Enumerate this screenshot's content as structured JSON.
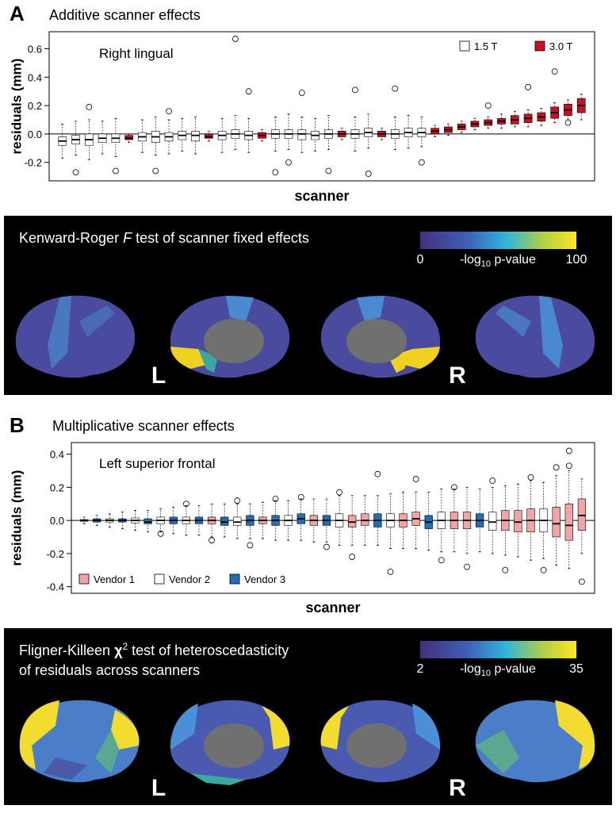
{
  "chart_data": [
    {
      "type": "box",
      "panel": "A",
      "title": "Additive scanner effects",
      "annotation": "Right lingual",
      "ylabel": "residuals (mm)",
      "xlabel": "scanner",
      "xlim": [
        0,
        41
      ],
      "ylim": [
        -0.33,
        0.72
      ],
      "yticks": [
        -0.2,
        {
          "value": 0,
          "label": "0.0"
        },
        0.2,
        0.4,
        0.6
      ],
      "legend": "upper right",
      "series": [
        {
          "name": "1.5 T",
          "color": "#ffffff",
          "x": [
            1,
            2,
            3,
            4,
            5,
            7,
            8,
            9,
            10,
            11,
            13,
            14,
            15,
            17,
            18,
            19,
            20,
            21,
            23,
            24,
            26,
            27,
            28
          ],
          "low": [
            -0.17,
            -0.15,
            -0.18,
            -0.14,
            -0.16,
            -0.13,
            -0.15,
            -0.14,
            -0.12,
            -0.14,
            -0.13,
            -0.11,
            -0.13,
            -0.12,
            -0.11,
            -0.13,
            -0.12,
            -0.11,
            -0.12,
            -0.1,
            -0.11,
            -0.1,
            -0.09
          ],
          "q1": [
            -0.08,
            -0.07,
            -0.08,
            -0.06,
            -0.06,
            -0.05,
            -0.06,
            -0.05,
            -0.04,
            -0.05,
            -0.04,
            -0.03,
            -0.04,
            -0.03,
            -0.03,
            -0.04,
            -0.04,
            -0.03,
            -0.03,
            -0.02,
            -0.03,
            -0.02,
            -0.02
          ],
          "median": [
            -0.05,
            -0.04,
            -0.04,
            -0.03,
            -0.03,
            -0.02,
            -0.02,
            -0.02,
            -0.01,
            -0.01,
            -0.01,
            0,
            -0.01,
            0,
            0,
            0,
            -0.01,
            0,
            0,
            0.01,
            0,
            0.01,
            0.01
          ],
          "q3": [
            -0.02,
            -0.01,
            0,
            0,
            0,
            0.01,
            0.02,
            0.01,
            0.02,
            0.02,
            0.02,
            0.03,
            0.02,
            0.03,
            0.03,
            0.03,
            0.02,
            0.03,
            0.03,
            0.04,
            0.03,
            0.04,
            0.04
          ],
          "high": [
            0.07,
            0.09,
            0.1,
            0.09,
            0.11,
            0.1,
            0.12,
            0.1,
            0.11,
            0.12,
            0.11,
            0.13,
            0.11,
            0.12,
            0.14,
            0.12,
            0.11,
            0.13,
            0.12,
            0.14,
            0.12,
            0.13,
            0.12
          ]
        },
        {
          "name": "3.0 T",
          "color": "#cc1020",
          "x": [
            6,
            12,
            16,
            22,
            25,
            29,
            30,
            31,
            32,
            33,
            34,
            35,
            36,
            37,
            38,
            39,
            40
          ],
          "low": [
            -0.06,
            -0.05,
            -0.05,
            -0.04,
            -0.04,
            -0.02,
            -0.01,
            0.01,
            0.03,
            0.04,
            0.04,
            0.05,
            0.05,
            0.06,
            0.08,
            0.1,
            0.1
          ],
          "q1": [
            -0.04,
            -0.03,
            -0.03,
            -0.02,
            -0.02,
            0,
            0.01,
            0.03,
            0.05,
            0.06,
            0.07,
            0.07,
            0.08,
            0.09,
            0.11,
            0.13,
            0.15
          ],
          "median": [
            -0.03,
            -0.02,
            -0.01,
            0,
            0,
            0.02,
            0.03,
            0.05,
            0.07,
            0.08,
            0.09,
            0.1,
            0.11,
            0.12,
            0.15,
            0.17,
            0.2
          ],
          "q3": [
            -0.01,
            0,
            0.01,
            0.02,
            0.02,
            0.04,
            0.05,
            0.07,
            0.09,
            0.1,
            0.11,
            0.13,
            0.14,
            0.15,
            0.19,
            0.21,
            0.25
          ],
          "high": [
            0,
            0.02,
            0.03,
            0.04,
            0.04,
            0.06,
            0.07,
            0.09,
            0.11,
            0.12,
            0.14,
            0.16,
            0.17,
            0.18,
            0.22,
            0.24,
            0.28
          ]
        }
      ],
      "outliers": {
        "x": [
          2,
          3,
          5,
          8,
          9,
          14,
          15,
          17,
          18,
          19,
          21,
          23,
          24,
          26,
          28,
          33,
          36,
          38,
          39
        ],
        "y": [
          -0.27,
          0.19,
          -0.26,
          -0.26,
          0.16,
          0.67,
          0.3,
          -0.27,
          -0.2,
          0.29,
          -0.26,
          0.31,
          -0.28,
          0.32,
          -0.2,
          0.2,
          0.33,
          0.44,
          0.08
        ]
      }
    },
    {
      "type": "box",
      "panel": "B",
      "title": "Multiplicative scanner effects",
      "annotation": "Left superior frontal",
      "ylabel": "residuals (mm)",
      "xlabel": "scanner",
      "xlim": [
        0,
        41
      ],
      "ylim": [
        -0.44,
        0.47
      ],
      "yticks": [
        -0.4,
        -0.2,
        {
          "value": 0,
          "label": "0.0"
        },
        0.2,
        0.4
      ],
      "legend": "lower left",
      "series": [
        {
          "name": "Vendor 1",
          "color": "#f2a3a3",
          "x": [
            11,
            15,
            19,
            22,
            23,
            26,
            27,
            30,
            31,
            34,
            35,
            36,
            38,
            39,
            40
          ],
          "low": [
            -0.1,
            -0.11,
            -0.13,
            -0.15,
            -0.15,
            -0.17,
            -0.17,
            -0.19,
            -0.2,
            -0.21,
            -0.22,
            -0.24,
            -0.27,
            -0.29,
            -0.2
          ],
          "q1": [
            -0.02,
            -0.02,
            -0.03,
            -0.04,
            -0.03,
            -0.04,
            -0.03,
            -0.05,
            -0.05,
            -0.06,
            -0.07,
            -0.07,
            -0.1,
            -0.12,
            -0.06
          ],
          "median": [
            0,
            0,
            0,
            -0.01,
            0,
            0,
            0.01,
            0,
            0,
            0,
            -0.01,
            0,
            -0.02,
            -0.03,
            0.03
          ],
          "q3": [
            0.02,
            0.02,
            0.03,
            0.03,
            0.04,
            0.04,
            0.05,
            0.05,
            0.05,
            0.06,
            0.06,
            0.07,
            0.08,
            0.1,
            0.13
          ],
          "high": [
            0.1,
            0.11,
            0.13,
            0.15,
            0.15,
            0.17,
            0.17,
            0.19,
            0.2,
            0.21,
            0.22,
            0.24,
            0.27,
            0.3,
            0.25
          ]
        },
        {
          "name": "Vendor 2",
          "color": "#ffffff",
          "x": [
            1,
            3,
            5,
            7,
            9,
            13,
            17,
            21,
            25,
            29,
            33,
            37
          ],
          "low": [
            -0.02,
            -0.04,
            -0.06,
            -0.07,
            -0.09,
            -0.11,
            -0.12,
            -0.15,
            -0.17,
            -0.19,
            -0.2,
            -0.23
          ],
          "q1": [
            -0.005,
            -0.01,
            -0.015,
            -0.02,
            -0.02,
            -0.03,
            -0.03,
            -0.04,
            -0.04,
            -0.05,
            -0.06,
            -0.07
          ],
          "median": [
            0,
            0,
            0,
            0,
            0,
            -0.01,
            0,
            0,
            0,
            0,
            -0.01,
            0
          ],
          "q3": [
            0.005,
            0.01,
            0.015,
            0.02,
            0.02,
            0.02,
            0.03,
            0.04,
            0.04,
            0.05,
            0.05,
            0.07
          ],
          "high": [
            0.02,
            0.04,
            0.06,
            0.07,
            0.09,
            0.1,
            0.12,
            0.15,
            0.16,
            0.19,
            0.2,
            0.23
          ]
        },
        {
          "name": "Vendor 3",
          "color": "#1e6fb5",
          "x": [
            2,
            4,
            6,
            8,
            10,
            12,
            14,
            16,
            18,
            20,
            24,
            28,
            32
          ],
          "low": [
            -0.03,
            -0.05,
            -0.07,
            -0.08,
            -0.09,
            -0.1,
            -0.11,
            -0.12,
            -0.12,
            -0.13,
            -0.15,
            -0.18,
            -0.19
          ],
          "q1": [
            -0.01,
            -0.01,
            -0.02,
            -0.02,
            -0.02,
            -0.03,
            -0.03,
            -0.03,
            -0.02,
            -0.03,
            -0.04,
            -0.05,
            -0.04
          ],
          "median": [
            0,
            0,
            -0.01,
            0,
            0,
            -0.01,
            0,
            0,
            0.01,
            0,
            0,
            -0.01,
            0
          ],
          "q3": [
            0.01,
            0.01,
            0.01,
            0.02,
            0.02,
            0.02,
            0.03,
            0.03,
            0.04,
            0.03,
            0.04,
            0.03,
            0.04
          ],
          "high": [
            0.03,
            0.05,
            0.06,
            0.08,
            0.09,
            0.1,
            0.1,
            0.12,
            0.13,
            0.13,
            0.15,
            0.17,
            0.19
          ]
        }
      ],
      "outliers": {
        "x": [
          7,
          9,
          11,
          13,
          14,
          16,
          18,
          20,
          21,
          22,
          24,
          25,
          27,
          29,
          30,
          31,
          33,
          34,
          36,
          37,
          38,
          39,
          40,
          39
        ],
        "y": [
          -0.08,
          0.1,
          -0.12,
          0.12,
          -0.15,
          0.13,
          0.14,
          -0.16,
          0.17,
          -0.22,
          0.28,
          -0.31,
          0.25,
          -0.24,
          0.2,
          -0.28,
          0.24,
          -0.3,
          0.26,
          -0.3,
          0.32,
          0.42,
          -0.37,
          0.33
        ]
      }
    }
  ],
  "maps": [
    {
      "title": [
        [
          "Kenward-Roger ",
          "F",
          " test of scanner fixed effects"
        ]
      ],
      "colorbar": {
        "label": [
          "-log",
          "10",
          " p-value"
        ],
        "lim": [
          0,
          100
        ],
        "ticks": [
          0,
          100
        ]
      },
      "hemispheres": [
        "L",
        "R"
      ]
    },
    {
      "title": [
        [
          "Fligner-Killeen ",
          "χ",
          "2",
          " test of heteroscedasticity"
        ],
        [
          "of residuals across scanners"
        ]
      ],
      "colorbar": {
        "label": [
          "-log",
          "10",
          " p-value"
        ],
        "lim": [
          2,
          35
        ],
        "ticks": [
          2,
          35
        ]
      },
      "hemispheres": [
        "L",
        "R"
      ]
    }
  ]
}
